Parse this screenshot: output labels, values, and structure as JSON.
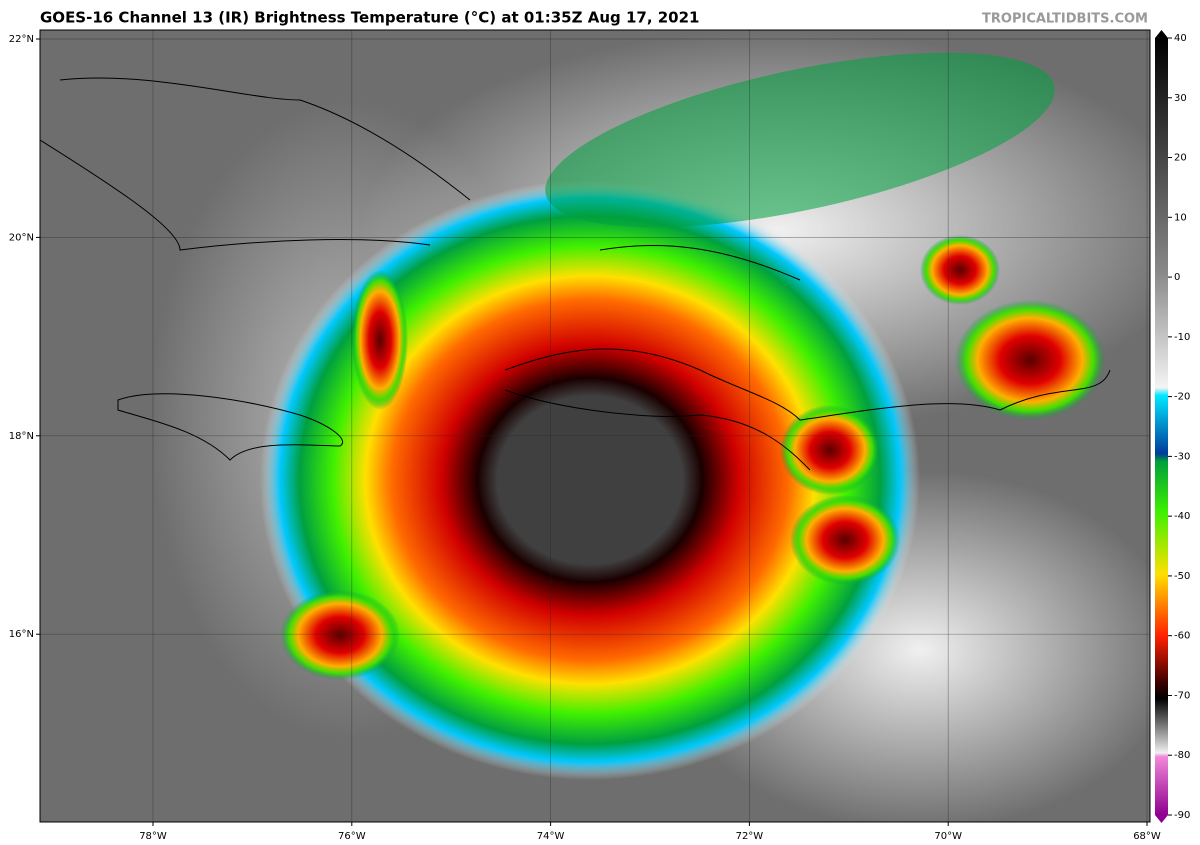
{
  "header": {
    "title": "GOES-16 Channel 13 (IR) Brightness Temperature (°C) at 01:35Z Aug 17, 2021",
    "credit": "TROPICALTIDBITS.COM"
  },
  "map": {
    "lat_labels": [
      "22°N",
      "20°N",
      "18°N",
      "16°N"
    ],
    "lon_labels": [
      "78°W",
      "76°W",
      "74°W",
      "72°W",
      "70°W",
      "68°W"
    ]
  },
  "colorbar": {
    "ticks": [
      40,
      30,
      20,
      10,
      0,
      -10,
      -20,
      -30,
      -40,
      -50,
      -60,
      -70,
      -80,
      -90
    ]
  }
}
